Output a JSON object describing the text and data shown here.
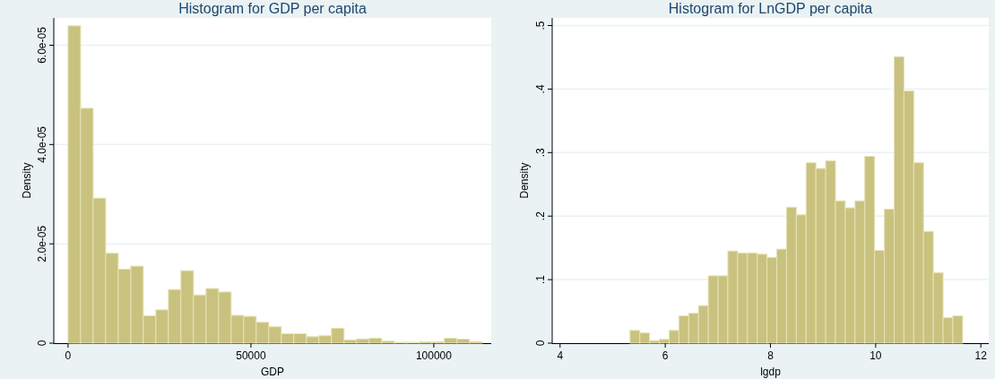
{
  "chart_data": [
    {
      "type": "histogram",
      "title": "Histogram for GDP per capita",
      "xlabel": "GDP",
      "ylabel": "Density",
      "color": "#c9c27f",
      "grid": "y",
      "bins": [
        0,
        3430,
        6860,
        10290,
        13720,
        17150,
        20580,
        24010,
        27440,
        30870,
        34300,
        37730,
        41160,
        44590,
        48020,
        51450,
        54880,
        58310,
        61740,
        65170,
        68600,
        72030,
        75460,
        78890,
        82320,
        85750,
        89180,
        92610,
        96040,
        99470,
        102900,
        106330,
        109760,
        113190
      ],
      "values": [
        6.39e-05,
        4.73e-05,
        2.92e-05,
        1.81e-05,
        1.49e-05,
        1.55e-05,
        5.5e-06,
        6.7e-06,
        1.08e-05,
        1.46e-05,
        9.7e-06,
        1.1e-05,
        1.03e-05,
        5.6e-06,
        5.4e-06,
        4.2e-06,
        3.3e-06,
        1.9e-06,
        1.9e-06,
        1.3e-06,
        1.5e-06,
        3e-06,
        6.5e-07,
        8.5e-07,
        1e-06,
        4e-07,
        1.5e-07,
        1.5e-07,
        2.5e-07,
        2.5e-07,
        1e-06,
        8e-07,
        3e-07
      ],
      "xlim": [
        -3900,
        115700
      ],
      "xticks": [
        0,
        50000,
        100000
      ],
      "ylim": [
        0,
        6.55e-05
      ],
      "yticks": [
        0,
        {
          "value": 2e-05,
          "label": "2.0e-05"
        },
        {
          "value": 4e-05,
          "label": "4.0e-05"
        },
        {
          "value": 6e-05,
          "label": "6.0e-05"
        }
      ]
    },
    {
      "type": "histogram",
      "title": "Histogram for LnGDP per capita",
      "xlabel": "lgdp",
      "ylabel": "Density",
      "color": "#c9c27f",
      "grid": "y",
      "bins": [
        5.33,
        5.516,
        5.702,
        5.888,
        6.074,
        6.26,
        6.446,
        6.632,
        6.818,
        7.004,
        7.19,
        7.376,
        7.562,
        7.748,
        7.934,
        8.12,
        8.306,
        8.492,
        8.678,
        8.864,
        9.05,
        9.236,
        9.422,
        9.608,
        9.794,
        9.98,
        10.166,
        10.352,
        10.538,
        10.724,
        10.91,
        11.096,
        11.282,
        11.468,
        11.654
      ],
      "values": [
        0.02,
        0.016,
        0.004,
        0.006,
        0.02,
        0.043,
        0.047,
        0.059,
        0.106,
        0.106,
        0.145,
        0.142,
        0.142,
        0.14,
        0.135,
        0.148,
        0.214,
        0.202,
        0.284,
        0.275,
        0.287,
        0.224,
        0.213,
        0.224,
        0.294,
        0.146,
        0.211,
        0.451,
        0.397,
        0.284,
        0.176,
        0.111,
        0.04,
        0.043
      ],
      "xlim": [
        3.85,
        12.15
      ],
      "xticks": [
        4,
        6,
        8,
        10,
        12
      ],
      "ylim": [
        0,
        0.512
      ],
      "yticks": [
        0,
        {
          "value": 0.1,
          "label": ".1"
        },
        {
          "value": 0.2,
          "label": ".2"
        },
        {
          "value": 0.3,
          "label": ".3"
        },
        {
          "value": 0.4,
          "label": ".4"
        },
        {
          "value": 0.5,
          "label": ".5"
        }
      ]
    }
  ]
}
